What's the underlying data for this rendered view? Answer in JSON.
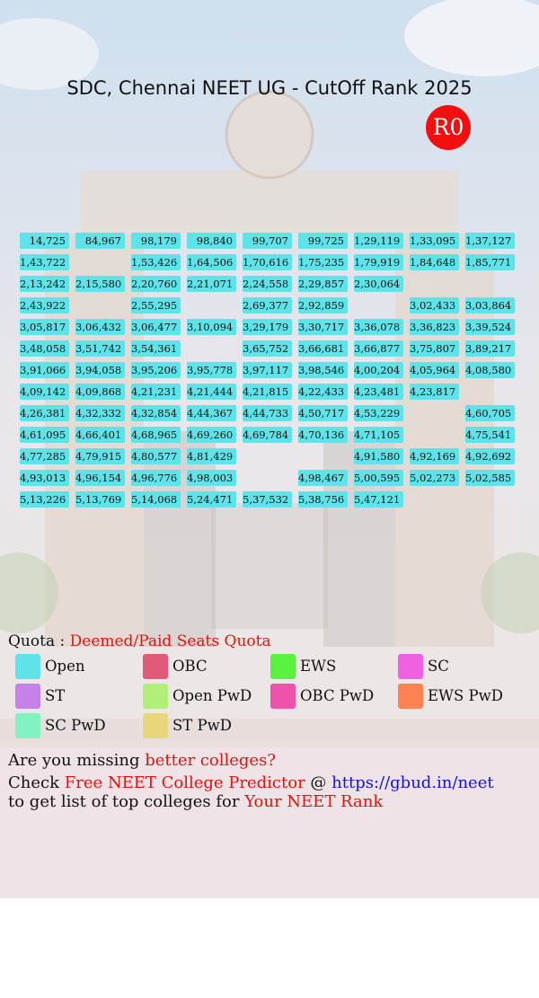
{
  "header": {
    "title": "SDC, Chennai NEET UG - CutOff Rank 2025",
    "badge": "R0"
  },
  "grid": {
    "rows": [
      [
        "14,725",
        "84,967",
        "98,179",
        "98,840",
        "99,707",
        "99,725",
        "1,29,119",
        "1,33,095",
        "1,37,127"
      ],
      [
        "1,43,722",
        null,
        "1,53,426",
        "1,64,506",
        "1,70,616",
        "1,75,235",
        "1,79,919",
        "1,84,648",
        "1,85,771"
      ],
      [
        "2,13,242",
        "2,15,580",
        "2,20,760",
        "2,21,071",
        "2,24,558",
        "2,29,857",
        "2,30,064",
        null,
        null
      ],
      [
        "2,43,922",
        null,
        "2,55,295",
        null,
        "2,69,377",
        "2,92,859",
        null,
        "3,02,433",
        "3,03,864"
      ],
      [
        "3,05,817",
        "3,06,432",
        "3,06,477",
        "3,10,094",
        "3,29,179",
        "3,30,717",
        "3,36,078",
        "3,36,823",
        "3,39,524"
      ],
      [
        "3,48,058",
        "3,51,742",
        "3,54,361",
        null,
        "3,65,752",
        "3,66,681",
        "3,66,877",
        "3,75,807",
        "3,89,217"
      ],
      [
        "3,91,066",
        "3,94,058",
        "3,95,206",
        "3,95,778",
        "3,97,117",
        "3,98,546",
        "4,00,204",
        "4,05,964",
        "4,08,580"
      ],
      [
        "4,09,142",
        "4,09,868",
        "4,21,231",
        "4,21,444",
        "4,21,815",
        "4,22,433",
        "4,23,481",
        "4,23,817",
        null
      ],
      [
        "4,26,381",
        "4,32,332",
        "4,32,854",
        "4,44,367",
        "4,44,733",
        "4,50,717",
        "4,53,229",
        null,
        "4,60,705"
      ],
      [
        "4,61,095",
        "4,66,401",
        "4,68,965",
        "4,69,260",
        "4,69,784",
        "4,70,136",
        "4,71,105",
        null,
        "4,75,541"
      ],
      [
        "4,77,285",
        "4,79,915",
        "4,80,577",
        "4,81,429",
        null,
        null,
        "4,91,580",
        "4,92,169",
        "4,92,692"
      ],
      [
        "4,93,013",
        "4,96,154",
        "4,96,776",
        "4,98,003",
        null,
        "4,98,467",
        "5,00,595",
        "5,02,273",
        "5,02,585"
      ],
      [
        "5,13,226",
        "5,13,769",
        "5,14,068",
        "5,24,471",
        "5,37,532",
        "5,38,756",
        "5,47,121",
        null,
        null
      ]
    ]
  },
  "quota": {
    "label": "Quota : ",
    "value": "Deemed/Paid Seats Quota"
  },
  "legend": [
    {
      "label": "Open",
      "color": "#5fe3e8"
    },
    {
      "label": "OBC",
      "color": "#e05a7a"
    },
    {
      "label": "EWS",
      "color": "#5af03e"
    },
    {
      "label": "SC",
      "color": "#ee62e2"
    },
    {
      "label": "ST",
      "color": "#c482e8"
    },
    {
      "label": "Open PwD",
      "color": "#b2ee7a"
    },
    {
      "label": "OBC PwD",
      "color": "#ee52aa"
    },
    {
      "label": "EWS PwD",
      "color": "#ff8252"
    },
    {
      "label": "SC PwD",
      "color": "#82f2c2"
    },
    {
      "label": "ST PwD",
      "color": "#e8d67a"
    }
  ],
  "footer": {
    "line1": [
      "Are you missing ",
      "better colleges?"
    ],
    "line2": [
      "Check ",
      "Free NEET College Predictor",
      " @ ",
      "https://gbud.in/neet"
    ],
    "line3": [
      "to get list of top colleges for ",
      "Your NEET Rank"
    ]
  }
}
